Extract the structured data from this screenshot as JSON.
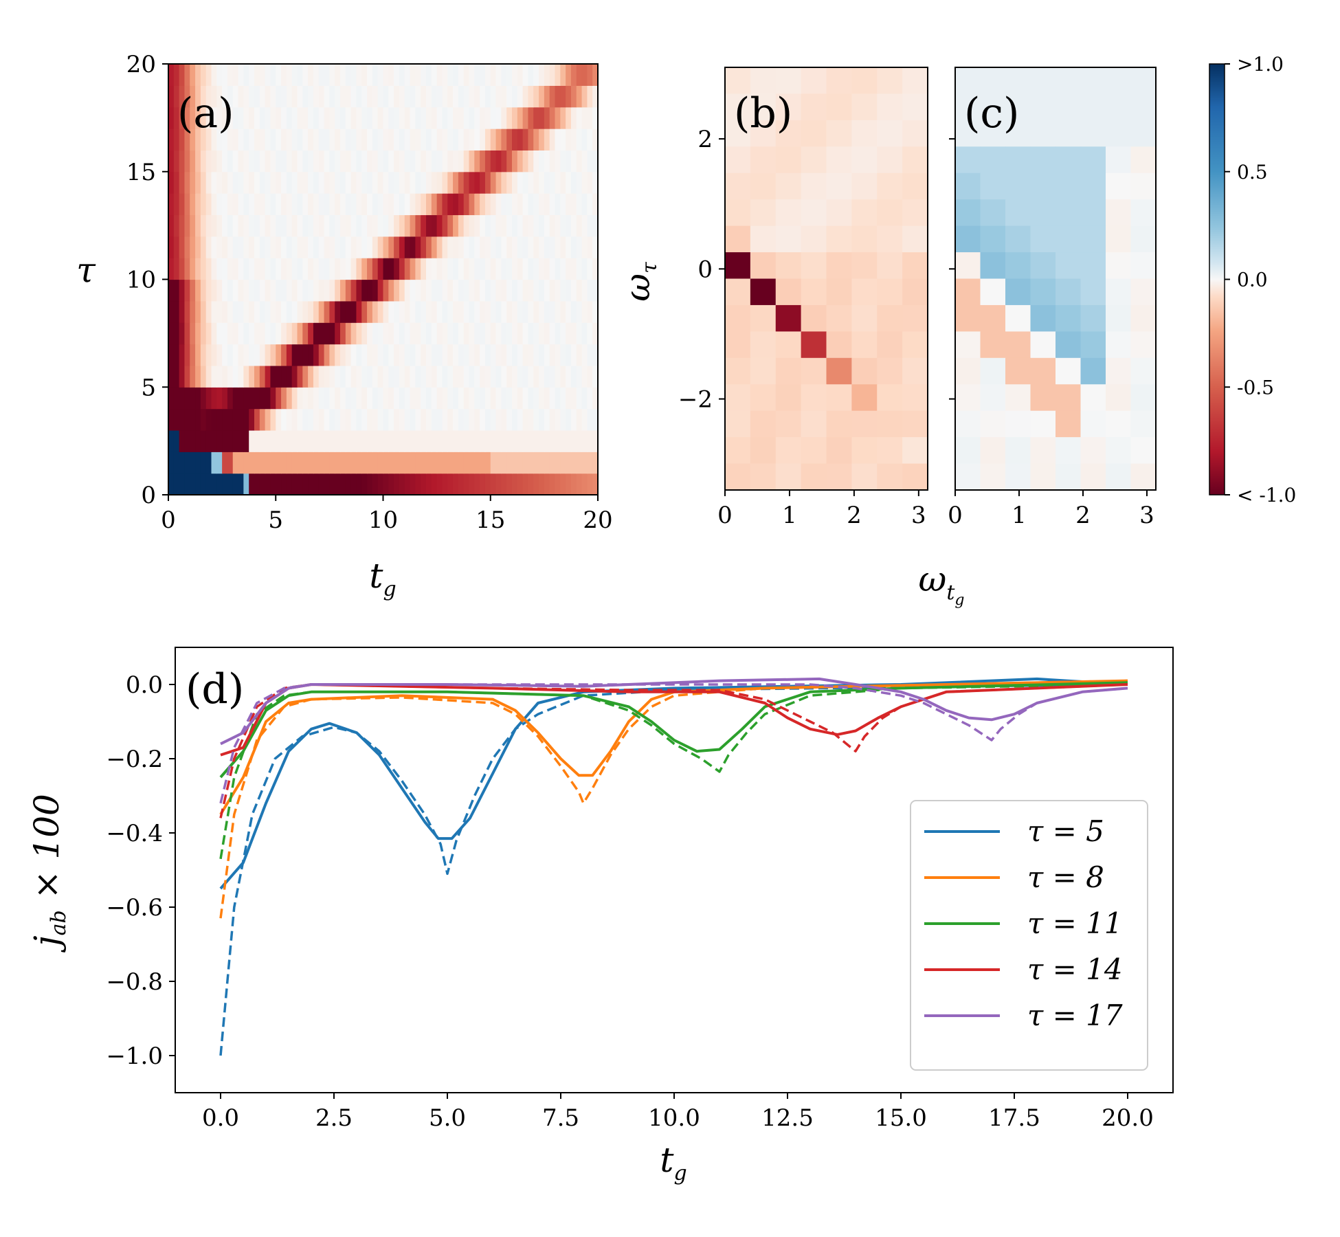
{
  "panels": {
    "a": {
      "label": "(a)",
      "xlabel": "t_g",
      "ylabel": "τ",
      "xticks": [
        "0",
        "5",
        "10",
        "15",
        "20"
      ],
      "yticks": [
        "0",
        "5",
        "10",
        "15",
        "20"
      ]
    },
    "b": {
      "label": "(b)",
      "ylabel": "ω_τ",
      "xticks": [
        "0",
        "1",
        "2",
        "3"
      ],
      "yticks": [
        "−2",
        "0",
        "2"
      ]
    },
    "c": {
      "label": "(c)",
      "xticks": [
        "0",
        "1",
        "2",
        "3"
      ]
    },
    "bc_xlabel": "ω_tg",
    "colorbar": {
      "ticks": [
        ">1.0",
        "0.5",
        "0.0",
        "-0.5",
        "< -1.0"
      ]
    },
    "d": {
      "label": "(d)",
      "xlabel": "t_g",
      "ylabel": "j_ab × 100",
      "xticks": [
        "0.0",
        "2.5",
        "5.0",
        "7.5",
        "10.0",
        "12.5",
        "15.0",
        "17.5",
        "20.0"
      ],
      "yticks": [
        "0.0",
        "−0.2",
        "−0.4",
        "−0.6",
        "−0.8",
        "−1.0"
      ]
    }
  },
  "chart_data": [
    {
      "type": "heatmap",
      "panel": "a",
      "title": "",
      "xlabel": "t_g",
      "ylabel": "τ",
      "xlim": [
        0,
        20
      ],
      "ylim": [
        0,
        20
      ],
      "colormap": "RdBu",
      "vmin": -1.0,
      "vmax": 1.0,
      "description_values": {
        "diagonal_feature": "negative band along τ ≈ t_g",
        "bottom_row_tau_0_to_1": -0.9,
        "corner_positive_block": 1.0
      }
    },
    {
      "type": "heatmap",
      "panel": "b",
      "xlabel": "ω_tg",
      "ylabel": "ω_τ",
      "xlim": [
        0,
        3.14
      ],
      "ylim": [
        -3.4,
        3.1
      ],
      "diagonal_values": [
        -1.0,
        -1.0,
        -0.9,
        -0.7,
        -0.35,
        -0.2,
        -0.1,
        -0.05
      ]
    },
    {
      "type": "heatmap",
      "panel": "c",
      "xlabel": "ω_tg",
      "xlim": [
        0,
        3.14
      ],
      "ylim": [
        -3.4,
        3.1
      ],
      "note": "weak positive region above diagonal, weak negative below"
    },
    {
      "type": "line",
      "panel": "d",
      "xlabel": "t_g",
      "ylabel": "j_ab × 100",
      "xlim": [
        -1,
        21
      ],
      "ylim": [
        -1.1,
        0.1
      ],
      "legend": "bottom-right",
      "series": [
        {
          "name": "τ = 5",
          "color": "#1f77b4",
          "solid": [
            [
              0,
              -0.55
            ],
            [
              0.5,
              -0.48
            ],
            [
              1,
              -0.32
            ],
            [
              1.5,
              -0.18
            ],
            [
              2,
              -0.12
            ],
            [
              2.4,
              -0.105
            ],
            [
              3,
              -0.13
            ],
            [
              3.5,
              -0.19
            ],
            [
              4,
              -0.28
            ],
            [
              4.5,
              -0.37
            ],
            [
              4.8,
              -0.415
            ],
            [
              5.1,
              -0.415
            ],
            [
              5.5,
              -0.36
            ],
            [
              6,
              -0.24
            ],
            [
              6.5,
              -0.12
            ],
            [
              7,
              -0.05
            ],
            [
              8,
              -0.02
            ],
            [
              10,
              -0.01
            ],
            [
              15,
              0.0
            ],
            [
              18,
              0.015
            ],
            [
              20,
              0.0
            ]
          ],
          "dashed": [
            [
              0,
              -1.0
            ],
            [
              0.3,
              -0.6
            ],
            [
              0.7,
              -0.35
            ],
            [
              1.2,
              -0.2
            ],
            [
              1.8,
              -0.14
            ],
            [
              2.5,
              -0.115
            ],
            [
              3,
              -0.13
            ],
            [
              3.5,
              -0.18
            ],
            [
              4,
              -0.26
            ],
            [
              4.5,
              -0.35
            ],
            [
              4.85,
              -0.43
            ],
            [
              5,
              -0.51
            ],
            [
              5.2,
              -0.42
            ],
            [
              5.6,
              -0.3
            ],
            [
              6,
              -0.2
            ],
            [
              6.5,
              -0.12
            ],
            [
              7,
              -0.08
            ],
            [
              8,
              -0.03
            ],
            [
              10,
              -0.015
            ],
            [
              20,
              0.0
            ]
          ]
        },
        {
          "name": "τ = 8",
          "color": "#ff7f0e",
          "solid": [
            [
              0,
              -0.35
            ],
            [
              0.5,
              -0.25
            ],
            [
              1,
              -0.1
            ],
            [
              1.5,
              -0.05
            ],
            [
              2,
              -0.04
            ],
            [
              4,
              -0.03
            ],
            [
              6,
              -0.04
            ],
            [
              6.5,
              -0.07
            ],
            [
              7,
              -0.13
            ],
            [
              7.5,
              -0.2
            ],
            [
              7.9,
              -0.245
            ],
            [
              8.2,
              -0.245
            ],
            [
              8.6,
              -0.18
            ],
            [
              9,
              -0.1
            ],
            [
              9.5,
              -0.04
            ],
            [
              10,
              -0.02
            ],
            [
              12,
              -0.01
            ],
            [
              20,
              0.01
            ]
          ],
          "dashed": [
            [
              0,
              -0.63
            ],
            [
              0.3,
              -0.35
            ],
            [
              0.8,
              -0.15
            ],
            [
              1.4,
              -0.06
            ],
            [
              2,
              -0.04
            ],
            [
              4,
              -0.035
            ],
            [
              6,
              -0.05
            ],
            [
              6.5,
              -0.08
            ],
            [
              7,
              -0.14
            ],
            [
              7.5,
              -0.22
            ],
            [
              7.9,
              -0.29
            ],
            [
              8,
              -0.32
            ],
            [
              8.2,
              -0.28
            ],
            [
              8.6,
              -0.19
            ],
            [
              9,
              -0.12
            ],
            [
              9.5,
              -0.06
            ],
            [
              10,
              -0.03
            ],
            [
              12,
              -0.01
            ],
            [
              20,
              0.01
            ]
          ]
        },
        {
          "name": "τ = 11",
          "color": "#2ca02c",
          "solid": [
            [
              0,
              -0.25
            ],
            [
              0.5,
              -0.18
            ],
            [
              1,
              -0.07
            ],
            [
              1.5,
              -0.03
            ],
            [
              2,
              -0.02
            ],
            [
              5,
              -0.02
            ],
            [
              8,
              -0.03
            ],
            [
              9,
              -0.06
            ],
            [
              9.5,
              -0.1
            ],
            [
              10,
              -0.15
            ],
            [
              10.5,
              -0.18
            ],
            [
              11,
              -0.175
            ],
            [
              11.5,
              -0.12
            ],
            [
              12,
              -0.06
            ],
            [
              13,
              -0.02
            ],
            [
              15,
              -0.01
            ],
            [
              20,
              0.005
            ]
          ],
          "dashed": [
            [
              0,
              -0.47
            ],
            [
              0.3,
              -0.25
            ],
            [
              0.8,
              -0.08
            ],
            [
              1.4,
              -0.03
            ],
            [
              2,
              -0.02
            ],
            [
              5,
              -0.02
            ],
            [
              8,
              -0.03
            ],
            [
              9,
              -0.07
            ],
            [
              9.5,
              -0.11
            ],
            [
              10,
              -0.16
            ],
            [
              10.6,
              -0.2
            ],
            [
              11,
              -0.235
            ],
            [
              11.2,
              -0.19
            ],
            [
              11.6,
              -0.13
            ],
            [
              12,
              -0.08
            ],
            [
              13,
              -0.03
            ],
            [
              15,
              -0.01
            ],
            [
              20,
              0.0
            ]
          ]
        },
        {
          "name": "τ = 14",
          "color": "#d62728",
          "solid": [
            [
              0,
              -0.19
            ],
            [
              0.5,
              -0.17
            ],
            [
              1,
              -0.05
            ],
            [
              1.5,
              -0.01
            ],
            [
              2,
              0.0
            ],
            [
              6,
              -0.01
            ],
            [
              9,
              -0.02
            ],
            [
              11,
              -0.02
            ],
            [
              12,
              -0.05
            ],
            [
              12.5,
              -0.09
            ],
            [
              13,
              -0.12
            ],
            [
              13.6,
              -0.135
            ],
            [
              14,
              -0.125
            ],
            [
              14.5,
              -0.09
            ],
            [
              15,
              -0.06
            ],
            [
              16,
              -0.02
            ],
            [
              18,
              -0.01
            ],
            [
              20,
              0.0
            ]
          ],
          "dashed": [
            [
              0,
              -0.36
            ],
            [
              0.3,
              -0.2
            ],
            [
              0.8,
              -0.06
            ],
            [
              1.4,
              -0.01
            ],
            [
              2,
              0.0
            ],
            [
              6,
              -0.01
            ],
            [
              9,
              -0.015
            ],
            [
              11,
              -0.015
            ],
            [
              12,
              -0.04
            ],
            [
              12.5,
              -0.07
            ],
            [
              13,
              -0.1
            ],
            [
              13.5,
              -0.13
            ],
            [
              14,
              -0.18
            ],
            [
              14.2,
              -0.14
            ],
            [
              14.6,
              -0.09
            ],
            [
              15,
              -0.06
            ],
            [
              16,
              -0.02
            ],
            [
              18,
              -0.01
            ],
            [
              20,
              0.0
            ]
          ]
        },
        {
          "name": "τ = 17",
          "color": "#9467bd",
          "solid": [
            [
              0,
              -0.16
            ],
            [
              0.5,
              -0.13
            ],
            [
              1,
              -0.05
            ],
            [
              1.5,
              -0.01
            ],
            [
              2,
              0.0
            ],
            [
              5,
              0.0
            ],
            [
              8,
              -0.005
            ],
            [
              11,
              0.01
            ],
            [
              13.2,
              0.015
            ],
            [
              14,
              0.0
            ],
            [
              15,
              -0.02
            ],
            [
              15.5,
              -0.04
            ],
            [
              16,
              -0.07
            ],
            [
              16.5,
              -0.09
            ],
            [
              17,
              -0.095
            ],
            [
              17.5,
              -0.08
            ],
            [
              18,
              -0.05
            ],
            [
              19,
              -0.02
            ],
            [
              20,
              -0.01
            ]
          ],
          "dashed": [
            [
              0,
              -0.32
            ],
            [
              0.3,
              -0.17
            ],
            [
              0.8,
              -0.05
            ],
            [
              1.4,
              -0.01
            ],
            [
              2,
              0.0
            ],
            [
              5,
              0.0
            ],
            [
              8,
              0.0
            ],
            [
              11,
              0.0
            ],
            [
              13,
              0.0
            ],
            [
              14,
              -0.01
            ],
            [
              15,
              -0.03
            ],
            [
              15.5,
              -0.05
            ],
            [
              16,
              -0.08
            ],
            [
              16.5,
              -0.11
            ],
            [
              17,
              -0.15
            ],
            [
              17.2,
              -0.12
            ],
            [
              17.6,
              -0.08
            ],
            [
              18,
              -0.05
            ],
            [
              19,
              -0.02
            ],
            [
              20,
              -0.01
            ]
          ]
        }
      ]
    }
  ]
}
